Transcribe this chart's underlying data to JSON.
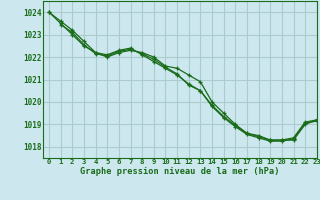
{
  "title": "Graphe pression niveau de la mer (hPa)",
  "bg_color": "#cce8ee",
  "grid_color": "#aacccc",
  "line_color": "#1a6b1a",
  "xlim": [
    -0.5,
    23
  ],
  "ylim": [
    1017.5,
    1024.5
  ],
  "yticks": [
    1018,
    1019,
    1020,
    1021,
    1022,
    1023,
    1024
  ],
  "xticks": [
    0,
    1,
    2,
    3,
    4,
    5,
    6,
    7,
    8,
    9,
    10,
    11,
    12,
    13,
    14,
    15,
    16,
    17,
    18,
    19,
    20,
    21,
    22,
    23
  ],
  "series": [
    {
      "x": [
        0,
        1,
        2,
        3,
        4,
        5,
        6,
        7,
        8,
        9,
        10,
        11,
        12,
        13,
        14,
        15,
        16,
        17,
        18,
        19,
        20,
        21,
        22,
        23
      ],
      "y": [
        1024.0,
        1023.6,
        1023.2,
        1022.7,
        1022.2,
        1022.0,
        1022.2,
        1022.3,
        1022.2,
        1022.0,
        1021.6,
        1021.5,
        1021.2,
        1020.9,
        1020.0,
        1019.5,
        1019.0,
        1018.6,
        1018.5,
        1018.3,
        1018.3,
        1018.4,
        1019.1,
        1019.2
      ]
    },
    {
      "x": [
        0,
        1,
        2,
        3,
        4,
        5,
        6,
        7,
        8,
        9,
        10,
        11,
        12,
        13,
        14,
        15,
        16,
        17,
        18,
        19,
        20,
        21,
        22,
        23
      ],
      "y": [
        1024.0,
        1023.5,
        1023.0,
        1022.5,
        1022.2,
        1022.1,
        1022.3,
        1022.4,
        1022.1,
        1021.8,
        1021.5,
        1021.2,
        1020.8,
        1020.5,
        1019.8,
        1019.3,
        1018.9,
        1018.55,
        1018.4,
        1018.25,
        1018.25,
        1018.35,
        1019.05,
        1019.15
      ]
    },
    {
      "x": [
        1,
        2,
        3,
        4,
        5,
        6,
        7,
        8,
        9,
        10,
        11,
        12,
        13,
        14,
        15,
        16,
        17,
        18,
        19,
        20,
        21,
        22,
        23
      ],
      "y": [
        1023.45,
        1023.1,
        1022.55,
        1022.15,
        1022.05,
        1022.25,
        1022.35,
        1022.15,
        1021.9,
        1021.55,
        1021.25,
        1020.75,
        1020.5,
        1019.85,
        1019.35,
        1018.95,
        1018.6,
        1018.45,
        1018.3,
        1018.3,
        1018.3,
        1019.0,
        1019.2
      ]
    }
  ]
}
